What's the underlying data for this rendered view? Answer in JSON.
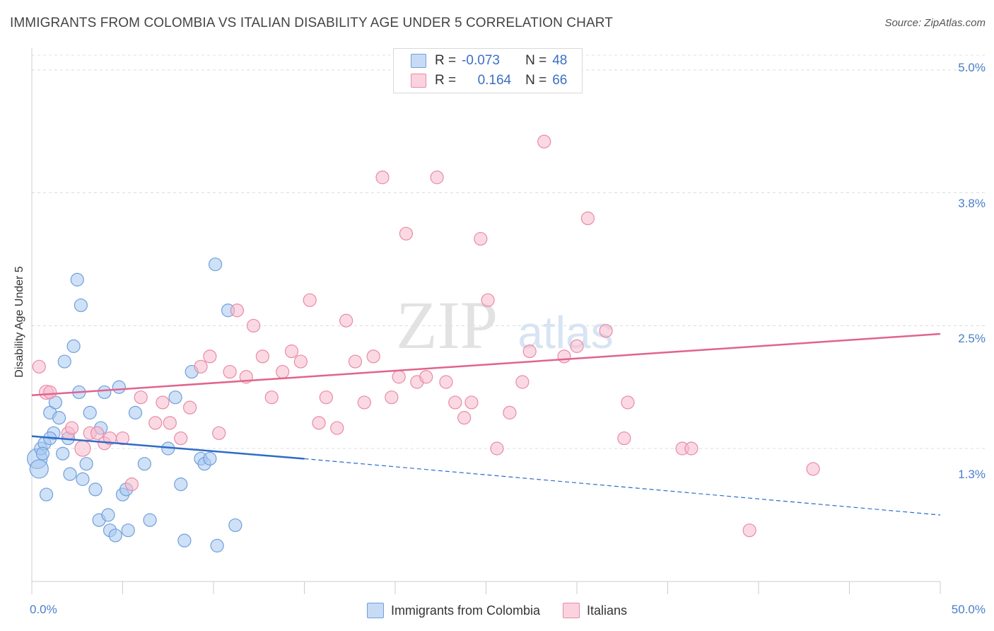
{
  "title": "IMMIGRANTS FROM COLOMBIA VS ITALIAN DISABILITY AGE UNDER 5 CORRELATION CHART",
  "source": "Source: ZipAtlas.com",
  "watermark": {
    "zip": "ZIP",
    "atlas": "atlas"
  },
  "stats": {
    "rows": [
      {
        "r_label": "R =",
        "r_value": "-0.073",
        "n_label": "N =",
        "n_value": "48",
        "color": "#a8c8f0"
      },
      {
        "r_label": "R =",
        "r_value": "0.164",
        "n_label": "N =",
        "n_value": "66",
        "color": "#f7b9cc"
      }
    ]
  },
  "legend": {
    "items": [
      {
        "label": "Immigrants from Colombia",
        "color": "#a8c8f0"
      },
      {
        "label": "Italians",
        "color": "#f7b9cc"
      }
    ]
  },
  "chart_data": {
    "type": "scatter",
    "title": "IMMIGRANTS FROM COLOMBIA VS ITALIAN DISABILITY AGE UNDER 5 CORRELATION CHART",
    "xlabel": "",
    "ylabel": "Disability Age Under 5",
    "xlim": [
      0,
      50
    ],
    "ylim": [
      0,
      5.2
    ],
    "x_tick_labels": [
      "0.0%",
      "50.0%"
    ],
    "y_ticks": [
      1.3,
      2.5,
      3.8,
      5.0
    ],
    "y_tick_labels": [
      "1.3%",
      "2.5%",
      "3.8%",
      "5.0%"
    ],
    "grid": true,
    "legend_position": "bottom",
    "series": [
      {
        "name": "Immigrants from Colombia",
        "color": "#a8c8f0",
        "stroke": "#6f9fdc",
        "trend": {
          "x": [
            0,
            15
          ],
          "y": [
            1.42,
            1.2
          ],
          "dashed_to": [
            50,
            0.65
          ],
          "color": "#2d6cc8"
        },
        "points": [
          [
            0.3,
            1.2
          ],
          [
            0.4,
            1.1
          ],
          [
            0.5,
            1.3
          ],
          [
            0.7,
            1.35
          ],
          [
            0.8,
            0.85
          ],
          [
            1.0,
            1.65
          ],
          [
            1.2,
            1.45
          ],
          [
            1.3,
            1.75
          ],
          [
            1.5,
            1.6
          ],
          [
            1.7,
            1.25
          ],
          [
            1.8,
            2.15
          ],
          [
            2.0,
            1.4
          ],
          [
            2.1,
            1.05
          ],
          [
            2.3,
            2.3
          ],
          [
            2.5,
            2.95
          ],
          [
            2.6,
            1.85
          ],
          [
            2.7,
            2.7
          ],
          [
            2.8,
            1.0
          ],
          [
            3.0,
            1.15
          ],
          [
            3.2,
            1.65
          ],
          [
            3.5,
            0.9
          ],
          [
            3.7,
            0.6
          ],
          [
            3.8,
            1.5
          ],
          [
            4.0,
            1.85
          ],
          [
            4.2,
            0.65
          ],
          [
            4.3,
            0.5
          ],
          [
            4.6,
            0.45
          ],
          [
            4.8,
            1.9
          ],
          [
            5.0,
            0.85
          ],
          [
            5.2,
            0.9
          ],
          [
            5.3,
            0.5
          ],
          [
            5.7,
            1.65
          ],
          [
            6.2,
            1.15
          ],
          [
            6.5,
            0.6
          ],
          [
            7.5,
            1.3
          ],
          [
            7.9,
            1.8
          ],
          [
            8.2,
            0.95
          ],
          [
            8.4,
            0.4
          ],
          [
            8.8,
            2.05
          ],
          [
            9.3,
            1.2
          ],
          [
            9.5,
            1.15
          ],
          [
            9.8,
            1.2
          ],
          [
            10.1,
            3.1
          ],
          [
            10.2,
            0.35
          ],
          [
            10.8,
            2.65
          ],
          [
            11.2,
            0.55
          ],
          [
            1.0,
            1.4
          ],
          [
            0.6,
            1.25
          ]
        ]
      },
      {
        "name": "Italians",
        "color": "#f7b9cc",
        "stroke": "#e88aa8",
        "trend": {
          "x": [
            0,
            50
          ],
          "y": [
            1.82,
            2.42
          ],
          "color": "#e0648e"
        },
        "points": [
          [
            0.4,
            2.1
          ],
          [
            0.8,
            1.85
          ],
          [
            1.0,
            1.85
          ],
          [
            2.0,
            1.45
          ],
          [
            2.2,
            1.5
          ],
          [
            2.8,
            1.3
          ],
          [
            3.2,
            1.45
          ],
          [
            3.6,
            1.45
          ],
          [
            4.0,
            1.35
          ],
          [
            4.3,
            1.4
          ],
          [
            5.0,
            1.4
          ],
          [
            5.5,
            0.95
          ],
          [
            6.0,
            1.8
          ],
          [
            6.8,
            1.55
          ],
          [
            7.2,
            1.75
          ],
          [
            7.6,
            1.55
          ],
          [
            8.2,
            1.4
          ],
          [
            8.7,
            1.7
          ],
          [
            9.3,
            2.1
          ],
          [
            9.8,
            2.2
          ],
          [
            10.3,
            1.45
          ],
          [
            10.9,
            2.05
          ],
          [
            11.3,
            2.65
          ],
          [
            11.8,
            2.0
          ],
          [
            12.2,
            2.5
          ],
          [
            12.7,
            2.2
          ],
          [
            13.2,
            1.8
          ],
          [
            13.8,
            2.05
          ],
          [
            14.3,
            2.25
          ],
          [
            14.8,
            2.15
          ],
          [
            15.3,
            2.75
          ],
          [
            15.8,
            1.55
          ],
          [
            16.2,
            1.8
          ],
          [
            16.8,
            1.5
          ],
          [
            17.3,
            2.55
          ],
          [
            17.8,
            2.15
          ],
          [
            18.3,
            1.75
          ],
          [
            18.8,
            2.2
          ],
          [
            19.3,
            3.95
          ],
          [
            19.8,
            1.8
          ],
          [
            20.2,
            2.0
          ],
          [
            20.6,
            3.4
          ],
          [
            21.2,
            1.95
          ],
          [
            21.7,
            2.0
          ],
          [
            22.3,
            3.95
          ],
          [
            22.8,
            1.95
          ],
          [
            23.3,
            1.75
          ],
          [
            23.8,
            1.6
          ],
          [
            24.2,
            1.75
          ],
          [
            24.7,
            3.35
          ],
          [
            25.1,
            2.75
          ],
          [
            25.6,
            1.3
          ],
          [
            26.3,
            1.65
          ],
          [
            27.0,
            1.95
          ],
          [
            27.4,
            2.25
          ],
          [
            28.2,
            4.3
          ],
          [
            29.3,
            2.2
          ],
          [
            30.0,
            2.3
          ],
          [
            30.6,
            3.55
          ],
          [
            31.6,
            2.45
          ],
          [
            32.6,
            1.4
          ],
          [
            32.8,
            1.75
          ],
          [
            35.8,
            1.3
          ],
          [
            36.3,
            1.3
          ],
          [
            39.5,
            0.5
          ],
          [
            43.0,
            1.1
          ]
        ]
      }
    ]
  }
}
